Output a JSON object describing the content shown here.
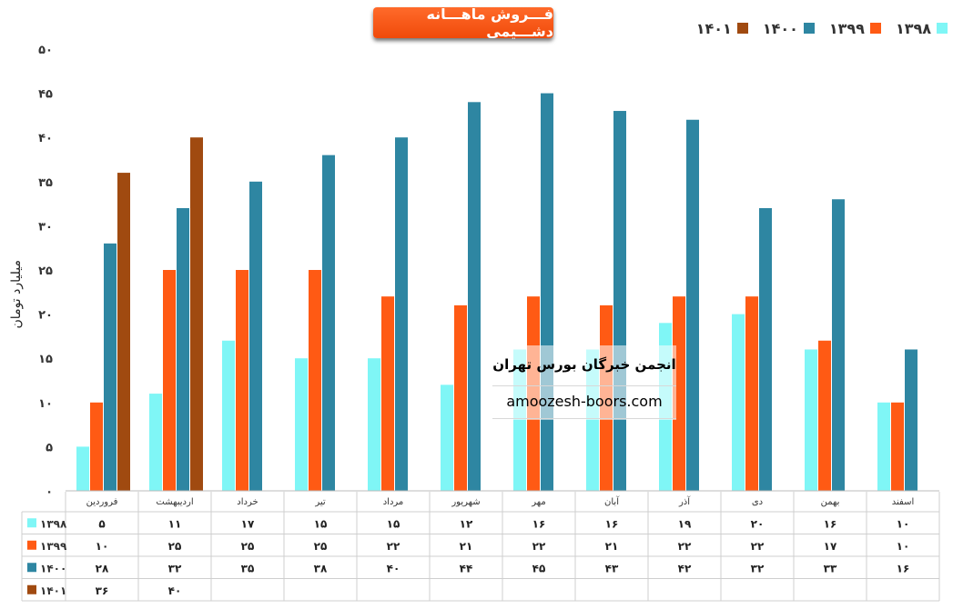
{
  "chart_data": {
    "type": "bar",
    "title": "فـــروش ماهـــانه دشـــیمی",
    "ylabel": "میلیارد تومان",
    "ylim": [
      0,
      50
    ],
    "yticks": [
      "۰",
      "۵",
      "۱۰",
      "۱۵",
      "۲۰",
      "۲۵",
      "۳۰",
      "۳۵",
      "۴۰",
      "۴۵",
      "۵۰"
    ],
    "grid": false,
    "legend_position": "top-right",
    "categories": [
      "فروردین",
      "اردیبهشت",
      "خرداد",
      "تیر",
      "مرداد",
      "شهریور",
      "مهر",
      "آبان",
      "آذر",
      "دی",
      "بهمن",
      "اسفند"
    ],
    "series": [
      {
        "name": "۱۳۹۸",
        "color": "#7ff6f6",
        "values": [
          5,
          11,
          17,
          15,
          15,
          12,
          16,
          16,
          19,
          20,
          16,
          10
        ],
        "table": [
          "۵",
          "۱۱",
          "۱۷",
          "۱۵",
          "۱۵",
          "۱۲",
          "۱۶",
          "۱۶",
          "۱۹",
          "۲۰",
          "۱۶",
          "۱۰"
        ]
      },
      {
        "name": "۱۳۹۹",
        "color": "#ff5a14",
        "values": [
          10,
          25,
          25,
          25,
          22,
          21,
          22,
          21,
          22,
          22,
          17,
          10
        ],
        "table": [
          "۱۰",
          "۲۵",
          "۲۵",
          "۲۵",
          "۲۲",
          "۲۱",
          "۲۲",
          "۲۱",
          "۲۲",
          "۲۲",
          "۱۷",
          "۱۰"
        ]
      },
      {
        "name": "۱۴۰۰",
        "color": "#2e86a2",
        "values": [
          28,
          32,
          35,
          38,
          40,
          44,
          45,
          43,
          42,
          32,
          33,
          16
        ],
        "table": [
          "۲۸",
          "۳۲",
          "۳۵",
          "۳۸",
          "۴۰",
          "۴۴",
          "۴۵",
          "۴۳",
          "۴۲",
          "۳۲",
          "۳۳",
          "۱۶"
        ]
      },
      {
        "name": "۱۴۰۱",
        "color": "#a04a10",
        "values": [
          36,
          40,
          null,
          null,
          null,
          null,
          null,
          null,
          null,
          null,
          null,
          null
        ],
        "table": [
          "۳۶",
          "۴۰",
          "",
          "",
          "",
          "",
          "",
          "",
          "",
          "",
          "",
          ""
        ]
      }
    ],
    "legend_order": [
      3,
      2,
      1,
      0
    ],
    "watermark": {
      "line1": "انجمن خبرگان بورس تهران",
      "line2": "amoozesh-boors.com"
    }
  }
}
